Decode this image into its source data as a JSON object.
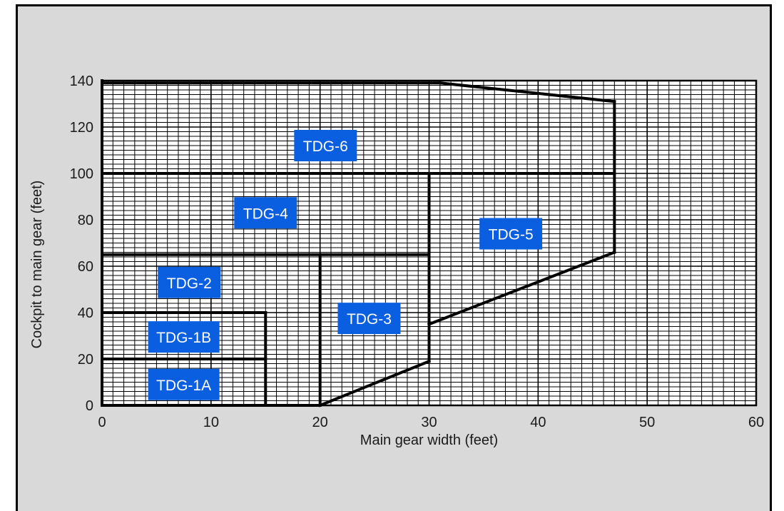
{
  "chart_data": {
    "type": "area",
    "xlabel": "Main gear width (feet)",
    "ylabel": "Cockpit to main gear (feet)",
    "xlim": [
      0,
      60
    ],
    "ylim": [
      0,
      140
    ],
    "x_ticks": [
      0,
      10,
      20,
      30,
      40,
      50,
      60
    ],
    "y_ticks": [
      0,
      20,
      40,
      60,
      80,
      100,
      120,
      140
    ],
    "grid": true,
    "grid_minor_x": 1,
    "grid_minor_y": 2,
    "boundaries": [
      [
        [
          0,
          0
        ],
        [
          0,
          140
        ]
      ],
      [
        [
          0,
          0
        ],
        [
          20,
          0
        ]
      ],
      [
        [
          0,
          20
        ],
        [
          15,
          20
        ]
      ],
      [
        [
          0,
          40
        ],
        [
          15,
          40
        ]
      ],
      [
        [
          15,
          0
        ],
        [
          15,
          40
        ]
      ],
      [
        [
          0,
          65
        ],
        [
          30,
          65
        ]
      ],
      [
        [
          20,
          0
        ],
        [
          20,
          65
        ]
      ],
      [
        [
          20,
          0
        ],
        [
          30,
          19
        ]
      ],
      [
        [
          30,
          19
        ],
        [
          30,
          100
        ]
      ],
      [
        [
          0,
          100
        ],
        [
          47,
          100
        ]
      ],
      [
        [
          30,
          35
        ],
        [
          47,
          66
        ]
      ],
      [
        [
          47,
          66
        ],
        [
          47,
          131
        ]
      ],
      [
        [
          0,
          139
        ],
        [
          31,
          139
        ]
      ],
      [
        [
          31,
          139
        ],
        [
          47,
          131
        ]
      ]
    ],
    "zones": [
      {
        "name": "TDG-1A",
        "x": 7.5,
        "y": 9
      },
      {
        "name": "TDG-1B",
        "x": 7.5,
        "y": 29.5
      },
      {
        "name": "TDG-2",
        "x": 8,
        "y": 53
      },
      {
        "name": "TDG-3",
        "x": 24.5,
        "y": 37.5
      },
      {
        "name": "TDG-4",
        "x": 15,
        "y": 83
      },
      {
        "name": "TDG-5",
        "x": 37.5,
        "y": 74
      },
      {
        "name": "TDG-6",
        "x": 20.5,
        "y": 112
      }
    ],
    "colors": {
      "label_bg": "#0a5fe0",
      "label_text": "#ffffff",
      "grid": "#000000",
      "boundary": "#000000",
      "panel": "#d9d9d9",
      "plot_bg": "#ffffff"
    }
  }
}
